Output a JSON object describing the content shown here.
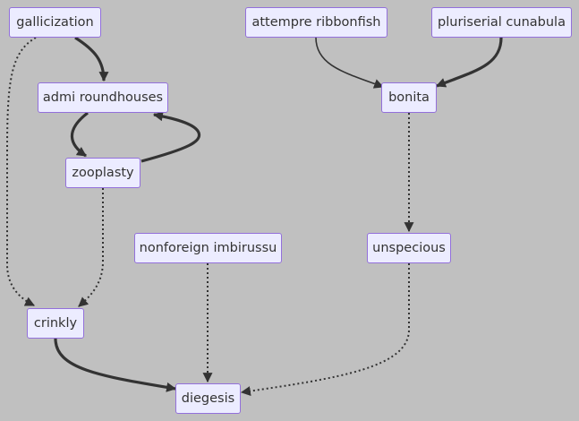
{
  "nodes": {
    "gallicization": "gallicization",
    "admi_roundhouses": "admi roundhouses",
    "zooplasty": "zooplasty",
    "crinkly": "crinkly",
    "nonforeign_imbirussu": "nonforeign imbirussu",
    "diegesis": "diegesis",
    "attempre_ribbonfish": "attempre ribbonfish",
    "pluriserial_cunabula": "pluriserial cunabula",
    "bonita": "bonita",
    "unspecious": "unspecious"
  },
  "edges": [
    {
      "from": "gallicization",
      "to": "admi_roundhouses",
      "style": "thick"
    },
    {
      "from": "gallicization",
      "to": "crinkly",
      "style": "dotted"
    },
    {
      "from": "admi_roundhouses",
      "to": "zooplasty",
      "style": "thick"
    },
    {
      "from": "zooplasty",
      "to": "admi_roundhouses",
      "style": "thick"
    },
    {
      "from": "zooplasty",
      "to": "crinkly",
      "style": "dotted"
    },
    {
      "from": "crinkly",
      "to": "diegesis",
      "style": "thick"
    },
    {
      "from": "nonforeign_imbirussu",
      "to": "diegesis",
      "style": "dotted"
    },
    {
      "from": "attempre_ribbonfish",
      "to": "bonita",
      "style": "normal"
    },
    {
      "from": "pluriserial_cunabula",
      "to": "bonita",
      "style": "thick"
    },
    {
      "from": "bonita",
      "to": "unspecious",
      "style": "dotted"
    },
    {
      "from": "unspecious",
      "to": "diegesis",
      "style": "dotted"
    }
  ]
}
